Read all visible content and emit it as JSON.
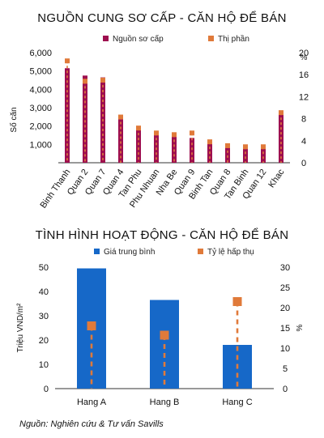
{
  "colors": {
    "maroon": "#9e0f4f",
    "orange": "#e07a3a",
    "blue": "#1668c8",
    "axis": "#333333"
  },
  "chart_data": [
    {
      "type": "bar",
      "title": "NGUỒN CUNG SƠ CẤP - CĂN HỘ ĐỂ BÁN",
      "legend": [
        "Nguồn sơ cấp",
        "Thị phần"
      ],
      "ylabel": "Số căn",
      "y2label": "%",
      "categories": [
        "Binh Thanh",
        "Quan 2",
        "Quan 7",
        "Quan 4",
        "Tan Phu",
        "Phu Nhuan",
        "Nha Be",
        "Quan 9",
        "Binh Tan",
        "Quan 8",
        "Tan Binh",
        "Quan 12",
        "Khac"
      ],
      "series": [
        {
          "name": "Nguồn sơ cấp",
          "values": [
            5150,
            4750,
            4650,
            2550,
            1900,
            1600,
            1500,
            1350,
            1080,
            900,
            860,
            850,
            2700
          ]
        },
        {
          "name": "Thị phần",
          "values": [
            18.5,
            14.8,
            15.0,
            8.3,
            6.3,
            5.4,
            5.1,
            5.4,
            3.8,
            3.1,
            2.9,
            2.9,
            9.1
          ]
        }
      ],
      "ylim": [
        0,
        6000
      ],
      "yticks": [
        "1,000",
        "2,000",
        "3,000",
        "4,000",
        "5,000",
        "6,000"
      ],
      "y2lim": [
        0,
        20
      ],
      "y2ticks": [
        "0",
        "4",
        "8",
        "12",
        "16",
        "20"
      ]
    },
    {
      "type": "bar",
      "title": "TÌNH HÌNH HOẠT ĐỘNG - CĂN HỘ ĐỂ BÁN",
      "legend": [
        "Giá trung bình",
        "Tỷ lệ hấp thụ"
      ],
      "ylabel": "Triệu VND/m²",
      "y2label": "%",
      "categories": [
        "Hang A",
        "Hang B",
        "Hang C"
      ],
      "series": [
        {
          "name": "Giá trung bình",
          "values": [
            49.5,
            36.5,
            18.0
          ]
        },
        {
          "name": "Tỷ lệ hấp thụ",
          "values": [
            15.5,
            13.2,
            21.5
          ]
        }
      ],
      "ylim": [
        0,
        50
      ],
      "yticks": [
        "0",
        "10",
        "20",
        "30",
        "40",
        "50"
      ],
      "y2lim": [
        0,
        30
      ],
      "y2ticks": [
        "0",
        "5",
        "10",
        "15",
        "20",
        "25",
        "30"
      ]
    }
  ],
  "source": "Nguồn: Nghiên cứu & Tư vấn Savills"
}
